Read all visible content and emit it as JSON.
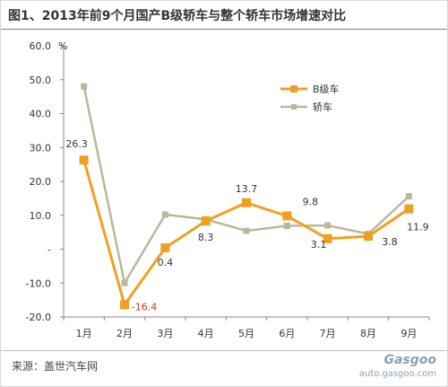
{
  "title": "图1、2013年前9个月国产B级轿车与整个轿车市场增速对比",
  "source": "来源：盖世汽车网",
  "watermark": {
    "logo": "Gasgoo",
    "url": "auto.gasgoo.com"
  },
  "colors": {
    "series_b": "#f0a020",
    "series_all": "#b8b89a",
    "negative_label": "#c0392b",
    "label": "#333333",
    "axis": "#888888"
  },
  "chart_data": {
    "type": "line",
    "title": "图1、2013年前9个月国产B级轿车与整个轿车市场增速对比",
    "ylabel": "%",
    "xlabel": "",
    "ylim": [
      -20,
      60
    ],
    "yticks": [
      "60.0",
      "50.0",
      "40.0",
      "30.0",
      "20.0",
      "10.0",
      "-",
      "-10.0",
      "-20.0"
    ],
    "ytick_values": [
      60,
      50,
      40,
      30,
      20,
      10,
      0,
      -10,
      -20
    ],
    "grid": false,
    "legend_position": "top-right",
    "categories": [
      "1月",
      "2月",
      "3月",
      "4月",
      "5月",
      "6月",
      "7月",
      "8月",
      "9月"
    ],
    "series": [
      {
        "name": "B级车",
        "values": [
          26.3,
          -16.4,
          0.4,
          8.3,
          13.7,
          9.8,
          3.1,
          3.8,
          11.9
        ],
        "labels": [
          "26.3",
          "-16.4",
          "0.4",
          "8.3",
          "13.7",
          "9.8",
          "3.1",
          "3.8",
          "11.9"
        ]
      },
      {
        "name": "轿车",
        "values": [
          48.0,
          -10.0,
          10.2,
          8.8,
          5.4,
          6.9,
          7.0,
          4.5,
          15.6
        ]
      }
    ]
  }
}
